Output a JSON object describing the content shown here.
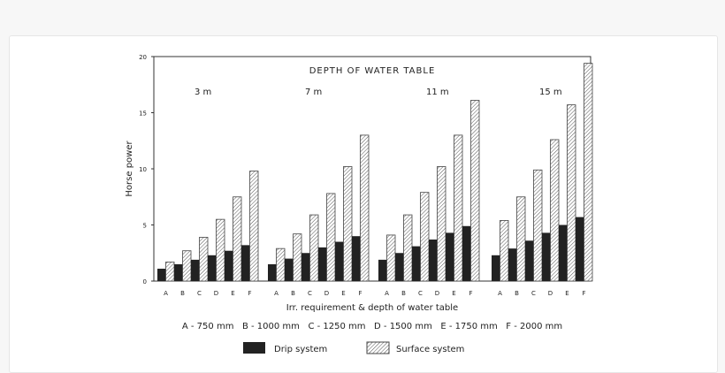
{
  "chart_data": {
    "type": "bar",
    "title": "DEPTH OF WATER TABLE",
    "ylabel": "Horse power",
    "xlabel": "Irr. requirement & depth of water table",
    "ylim": [
      0,
      20
    ],
    "yticks": [
      "0",
      "5",
      "10",
      "15",
      "20"
    ],
    "categories": [
      "A",
      "B",
      "C",
      "D",
      "E",
      "F"
    ],
    "groups": [
      {
        "label": "3 m",
        "drip": [
          1.1,
          1.5,
          1.9,
          2.3,
          2.7,
          3.2
        ],
        "surface": [
          1.7,
          2.7,
          3.9,
          5.5,
          7.5,
          9.8
        ]
      },
      {
        "label": "7 m",
        "drip": [
          1.5,
          2.0,
          2.5,
          3.0,
          3.5,
          4.0
        ],
        "surface": [
          2.9,
          4.2,
          5.9,
          7.8,
          10.2,
          13.0
        ]
      },
      {
        "label": "11 m",
        "drip": [
          1.9,
          2.5,
          3.1,
          3.7,
          4.3,
          4.9
        ],
        "surface": [
          4.1,
          5.9,
          7.9,
          10.2,
          13.0,
          16.1
        ]
      },
      {
        "label": "15 m",
        "drip": [
          2.3,
          2.9,
          3.6,
          4.3,
          5.0,
          5.7
        ],
        "surface": [
          5.4,
          7.5,
          9.9,
          12.6,
          15.7,
          19.4
        ]
      }
    ],
    "category_key": "A - 750 mm   B - 1000 mm   C - 1250 mm   D - 1500 mm   E - 1750 mm   F - 2000 mm",
    "series": [
      {
        "name": "Drip system",
        "color": "#222222",
        "pattern": "solid"
      },
      {
        "name": "Surface system",
        "color": "#ffffff",
        "pattern": "hatched"
      }
    ],
    "grid": false,
    "legend_position": "bottom"
  }
}
